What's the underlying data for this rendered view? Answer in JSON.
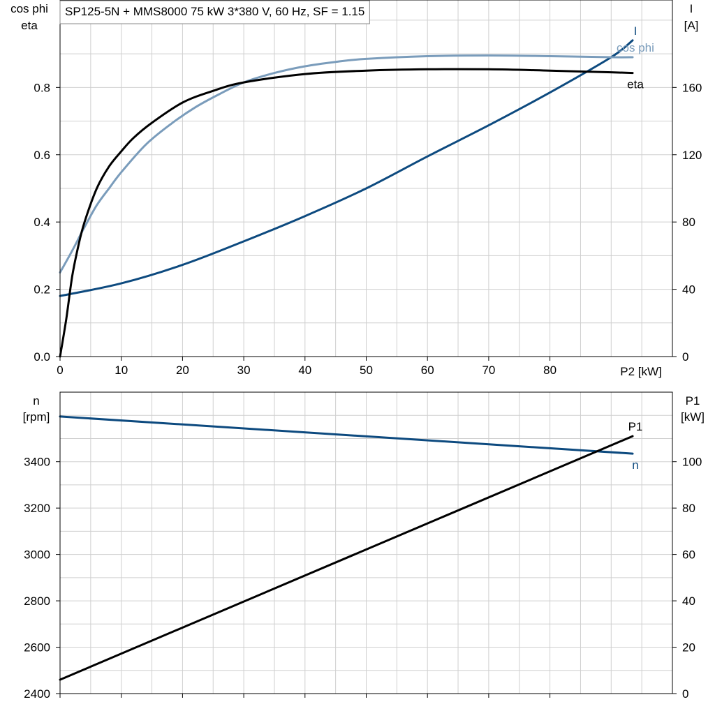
{
  "title": "SP125-5N + MMS8000   75 kW   3*380 V, 60 Hz, SF = 1.15",
  "colors": {
    "I": "#0d4a7f",
    "cos_phi": "#7a9cbb",
    "eta": "#000000",
    "n": "#0d4a7f",
    "P1": "#000000",
    "grid": "#cfcfcf"
  },
  "chart_data": [
    {
      "type": "line",
      "grid": true,
      "xlabel": "P2 [kW]",
      "xlim": [
        0,
        100
      ],
      "x_ticks": [
        0,
        10,
        20,
        30,
        40,
        50,
        60,
        70,
        80
      ],
      "x_tick_labels": [
        "0",
        "10",
        "20",
        "30",
        "40",
        "50",
        "60",
        "70",
        "80"
      ],
      "ylabel_left": [
        "cos phi",
        "eta"
      ],
      "ylim_left": [
        0,
        1.06
      ],
      "y_left_ticks": [
        0,
        0.2,
        0.4,
        0.6,
        0.8
      ],
      "y_left_tick_labels": [
        "0.0",
        "0.2",
        "0.4",
        "0.6",
        "0.8"
      ],
      "ylabel_right": [
        "I",
        "[A]"
      ],
      "ylim_right": [
        0,
        212
      ],
      "y_right_ticks": [
        0,
        40,
        80,
        120,
        160
      ],
      "y_right_tick_labels": [
        "0",
        "40",
        "80",
        "120",
        "160"
      ],
      "series": [
        {
          "name": "I",
          "axis": "right",
          "color_key": "I",
          "x": [
            0,
            10,
            20,
            30,
            40,
            50,
            60,
            70,
            80,
            90,
            93.5
          ],
          "y": [
            36,
            43.5,
            54.5,
            68.5,
            83.5,
            100,
            119,
            137.5,
            157,
            178,
            188
          ]
        },
        {
          "name": "cos phi",
          "axis": "left",
          "color_key": "cos_phi",
          "x": [
            0,
            2,
            4,
            6,
            8,
            10,
            14,
            18,
            22,
            26,
            30,
            35,
            40,
            45,
            50,
            60,
            70,
            80,
            90,
            93.5
          ],
          "y": [
            0.25,
            0.315,
            0.385,
            0.45,
            0.5,
            0.548,
            0.63,
            0.69,
            0.74,
            0.78,
            0.815,
            0.843,
            0.863,
            0.876,
            0.885,
            0.893,
            0.895,
            0.893,
            0.89,
            0.89
          ]
        },
        {
          "name": "eta",
          "axis": "left",
          "color_key": "eta",
          "x": [
            0,
            1,
            2,
            3,
            4,
            6,
            8,
            10,
            12,
            15,
            20,
            25,
            30,
            40,
            50,
            60,
            70,
            80,
            90,
            93.5
          ],
          "y": [
            0,
            0.11,
            0.24,
            0.33,
            0.4,
            0.5,
            0.565,
            0.61,
            0.65,
            0.695,
            0.755,
            0.79,
            0.815,
            0.84,
            0.85,
            0.854,
            0.854,
            0.85,
            0.845,
            0.843
          ]
        }
      ]
    },
    {
      "type": "line",
      "grid": true,
      "xlim": [
        0,
        100
      ],
      "x_ticks": [
        0,
        10,
        20,
        30,
        40,
        50,
        60,
        70,
        80
      ],
      "ylabel_left": [
        "n",
        "[rpm]"
      ],
      "ylim_left": [
        2400,
        3700
      ],
      "y_left_ticks": [
        2400,
        2600,
        2800,
        3000,
        3200,
        3400
      ],
      "y_left_tick_labels": [
        "2400",
        "2600",
        "2800",
        "3000",
        "3200",
        "3400"
      ],
      "ylabel_right": [
        "P1",
        "[kW]"
      ],
      "ylim_right": [
        0,
        130
      ],
      "y_right_ticks": [
        0,
        20,
        40,
        60,
        80,
        100
      ],
      "y_right_tick_labels": [
        "0",
        "20",
        "40",
        "60",
        "80",
        "100"
      ],
      "series": [
        {
          "name": "n",
          "axis": "left",
          "color_key": "n",
          "x": [
            0,
            93.5
          ],
          "y": [
            3595,
            3435
          ]
        },
        {
          "name": "P1",
          "axis": "right",
          "color_key": "P1",
          "x": [
            0,
            93.5
          ],
          "y": [
            6,
            111
          ]
        }
      ]
    }
  ]
}
